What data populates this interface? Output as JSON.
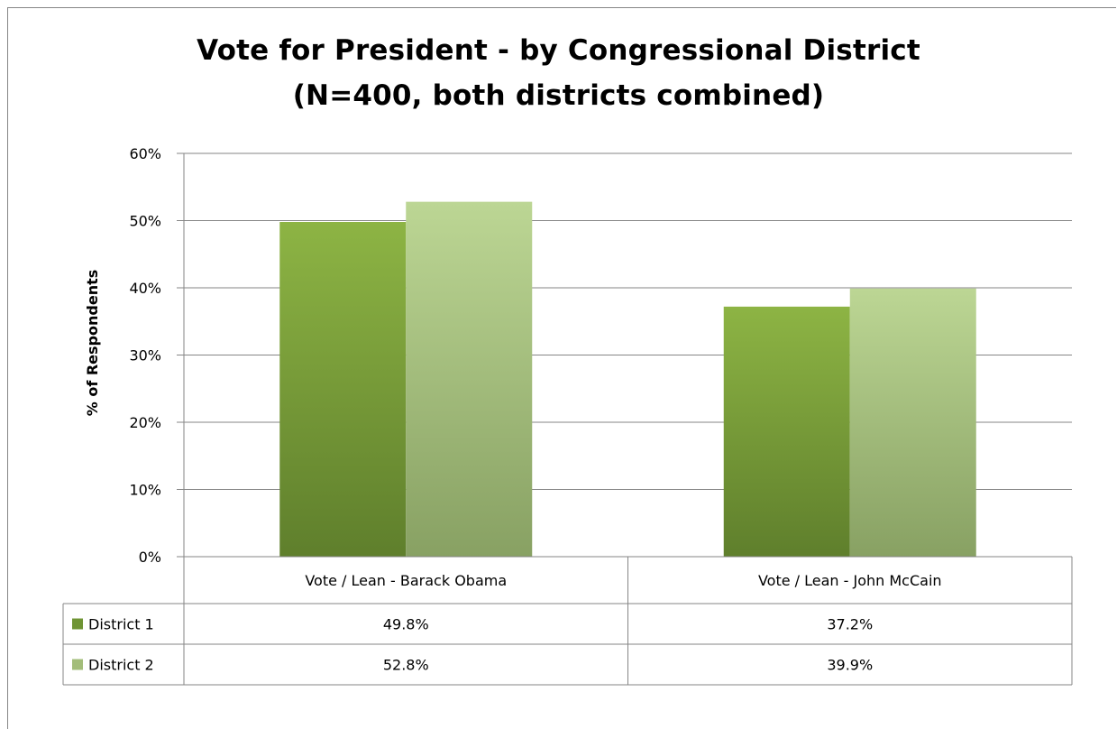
{
  "chart_data": {
    "type": "bar",
    "title": "Vote for President - by Congressional District",
    "subtitle": "(N=400, both districts combined)",
    "ylabel": "% of Respondents",
    "xlabel": "",
    "ylim": [
      0,
      60
    ],
    "yticks": [
      "0%",
      "10%",
      "20%",
      "30%",
      "40%",
      "50%",
      "60%"
    ],
    "categories": [
      "Vote / Lean - Barack Obama",
      "Vote / Lean - John McCain"
    ],
    "series": [
      {
        "name": "District 1",
        "values": [
          49.8,
          37.2
        ],
        "labels": [
          "49.8%",
          "37.2%"
        ],
        "color": "#6f9434"
      },
      {
        "name": "District 2",
        "values": [
          52.8,
          39.9
        ],
        "labels": [
          "52.8%",
          "39.9%"
        ],
        "color": "#a3bd7a"
      }
    ],
    "grid": true,
    "legend": "data table"
  }
}
